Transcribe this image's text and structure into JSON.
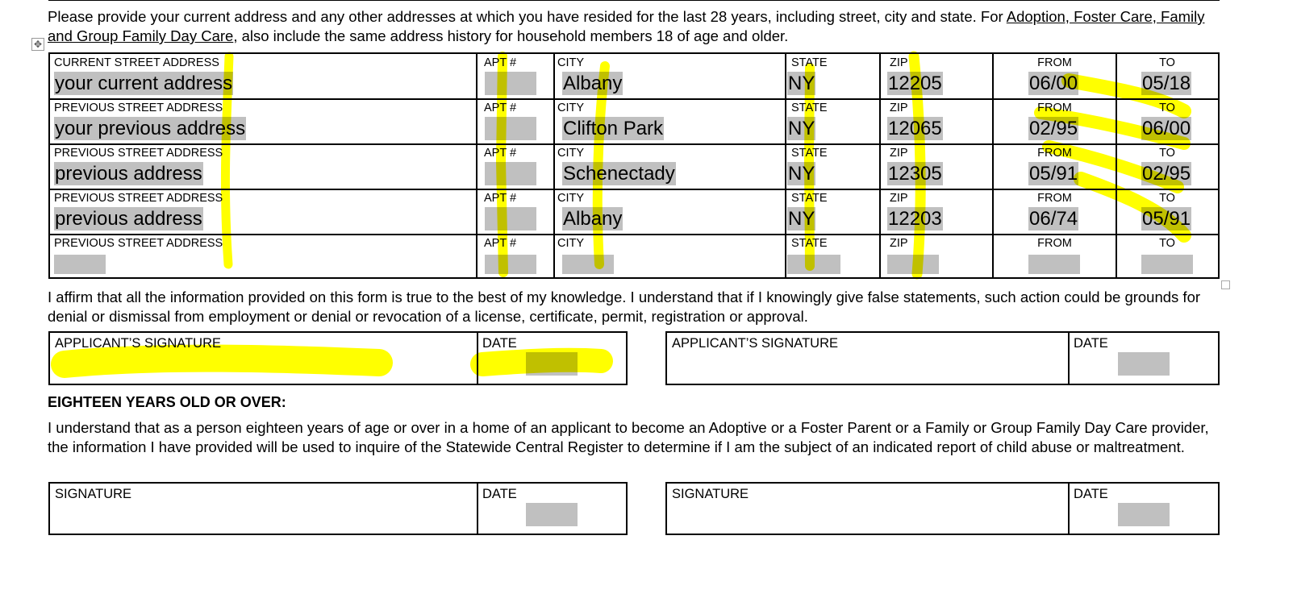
{
  "intro": {
    "text_before": "Please provide your current address and any other addresses at which you have resided for the last 28 years, including street, city and state. For ",
    "underlined": "Adoption, Foster Care, Family and Group Family Day Care",
    "text_after": ", also include the same address history for household members 18 of age and older."
  },
  "address_table": {
    "rows": [
      {
        "street_label": "CURRENT STREET ADDRESS",
        "street": "your current address",
        "apt_label": "APT #",
        "apt": "",
        "city_label": "CITY",
        "city": "Albany",
        "state_label": "STATE",
        "state": "NY",
        "zip_label": "ZIP",
        "zip": "12205",
        "from_label": "FROM",
        "from": "06/00",
        "to_label": "TO",
        "to": "05/18"
      },
      {
        "street_label": "PREVIOUS STREET ADDRESS",
        "street": "your previous address",
        "apt_label": "APT #",
        "apt": "",
        "city_label": "CITY",
        "city": "Clifton Park",
        "state_label": "STATE",
        "state": "NY",
        "zip_label": "ZIP",
        "zip": "12065",
        "from_label": "FROM",
        "from": "02/95",
        "to_label": "TO",
        "to": "06/00"
      },
      {
        "street_label": "PREVIOUS STREET ADDRESS",
        "street": "previous address",
        "apt_label": "APT #",
        "apt": "",
        "city_label": "CITY",
        "city": "Schenectady",
        "state_label": "STATE",
        "state": "NY",
        "zip_label": "ZIP",
        "zip": "12305",
        "from_label": "FROM",
        "from": "05/91",
        "to_label": "TO",
        "to": "02/95"
      },
      {
        "street_label": "PREVIOUS STREET ADDRESS",
        "street": "previous address",
        "apt_label": "APT #",
        "apt": "",
        "city_label": "CITY",
        "city": "Albany",
        "state_label": "STATE",
        "state": "NY",
        "zip_label": "ZIP",
        "zip": "12203",
        "from_label": "FROM",
        "from": "06/74",
        "to_label": "TO",
        "to": "05/91"
      },
      {
        "street_label": "PREVIOUS STREET ADDRESS",
        "street": "",
        "apt_label": "APT #",
        "apt": "",
        "city_label": "CITY",
        "city": "",
        "state_label": "STATE",
        "state": "",
        "zip_label": "ZIP",
        "zip": "",
        "from_label": "FROM",
        "from": "",
        "to_label": "TO",
        "to": ""
      }
    ]
  },
  "affirmation": "I affirm that all the information provided on this form is true to the best of my knowledge. I understand that if I knowingly give false statements, such action could be grounds for denial or dismissal from employment or denial or revocation of a license, certificate, permit, registration or approval.",
  "applicant_sig": {
    "signature_label": "APPLICANT’S SIGNATURE",
    "date_label": "DATE"
  },
  "over18": {
    "heading": "EIGHTEEN YEARS OLD OR OVER:",
    "text": "I understand that as a person eighteen years of age or over in a home of an applicant to become an Adoptive or a Foster Parent or a Family or Group Family Day Care provider, the information I have provided will be used to inquire of the Statewide Central Register to determine if I am the subject of an indicated report of child abuse or maltreatment.",
    "signature_label": "SIGNATURE",
    "date_label": "DATE"
  },
  "colors": {
    "highlight": "#ffff00",
    "field_shading": "#c0c0c0"
  }
}
